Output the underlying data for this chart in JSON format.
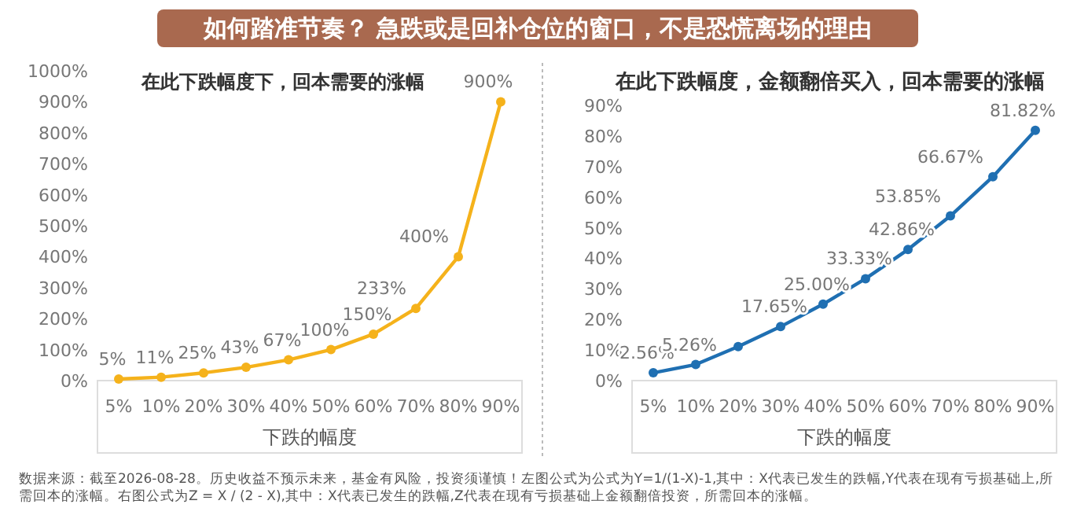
{
  "chart_data": [
    {
      "type": "other",
      "title": "如何踏准节奏？ 急跌或是回补仓位的窗口，不是恐慌离场的理由",
      "color": "#a9694f",
      "annotations": [
        "数据来源：截至2026-08-28。历史收益不预示未来，基金有风险，投资须谨慎！左图公式为公式为Y=1/(1-X)-1,其中：X代表已发生的跌幅,Y代表在现有亏损基础上,所需回本的涨幅。右图公式为Z = X / (2 - X),其中：X代表已发生的跌幅,Z代表在现有亏损基础上金额翻倍投资，所需回本的涨幅。"
      ]
    },
    {
      "type": "line",
      "title": "在此下跌幅度下，回本需要的涨幅",
      "xlabel": "下跌的幅度",
      "categories": [
        "5%",
        "10%",
        "20%",
        "30%",
        "40%",
        "50%",
        "60%",
        "70%",
        "80%",
        "90%"
      ],
      "series": [
        {
          "color": "#f5b21b",
          "values": [
            5,
            11,
            25,
            43,
            67,
            100,
            150,
            233,
            400,
            900
          ],
          "value_labels": [
            "5%",
            "11%",
            "25%",
            "43%",
            "67%",
            "100%",
            "150%",
            "233%",
            "400%",
            "900%"
          ]
        }
      ],
      "ylim": [
        0,
        1000
      ],
      "yticks": [
        {
          "value": 0,
          "label": "0%"
        },
        {
          "value": 100,
          "label": "100%"
        },
        {
          "value": 200,
          "label": "200%"
        },
        {
          "value": 300,
          "label": "300%"
        },
        {
          "value": 400,
          "label": "400%"
        },
        {
          "value": 500,
          "label": "500%"
        },
        {
          "value": 600,
          "label": "600%"
        },
        {
          "value": 700,
          "label": "700%"
        },
        {
          "value": 800,
          "label": "800%"
        },
        {
          "value": 900,
          "label": "900%"
        },
        {
          "value": 1000,
          "label": "1000%"
        }
      ],
      "marker": "circle",
      "grid": false
    },
    {
      "type": "line",
      "title": "在此下跌幅度，金额翻倍买入，回本需要的涨幅",
      "xlabel": "下跌的幅度",
      "categories": [
        "5%",
        "10%",
        "20%",
        "30%",
        "40%",
        "50%",
        "60%",
        "70%",
        "80%",
        "90%"
      ],
      "series": [
        {
          "color": "#1f6fb2",
          "values": [
            2.56,
            5.26,
            11.1,
            17.65,
            25.0,
            33.33,
            42.86,
            53.85,
            66.67,
            81.82
          ],
          "value_labels": [
            "2.56%",
            "5.26%",
            null,
            "17.65%",
            "25.00%",
            "33.33%",
            "42.86%",
            "53.85%",
            "66.67%",
            "81.82%"
          ]
        }
      ],
      "ylim": [
        0,
        90
      ],
      "yticks": [
        {
          "value": 0,
          "label": "0%"
        },
        {
          "value": 10,
          "label": "10%"
        },
        {
          "value": 20,
          "label": "20%"
        },
        {
          "value": 30,
          "label": "30%"
        },
        {
          "value": 40,
          "label": "40%"
        },
        {
          "value": 50,
          "label": "50%"
        },
        {
          "value": 60,
          "label": "60%"
        },
        {
          "value": 70,
          "label": "70%"
        },
        {
          "value": 80,
          "label": "80%"
        },
        {
          "value": 90,
          "label": "90%"
        }
      ],
      "marker": "circle",
      "grid": false
    }
  ]
}
